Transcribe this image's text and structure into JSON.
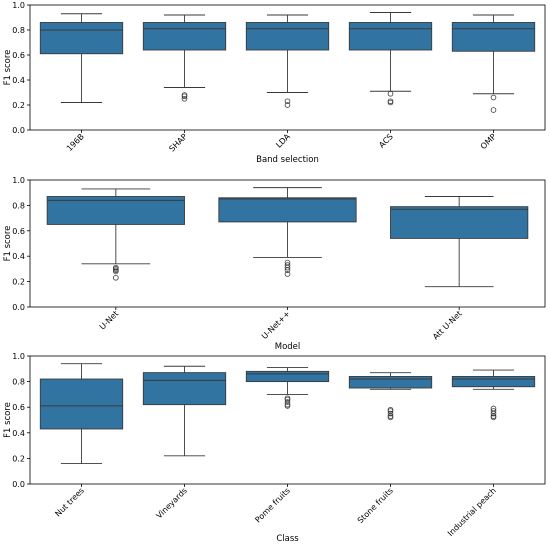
{
  "colors": {
    "box_fill": "#3274a1",
    "line": "#3a3a3a",
    "frame": "#000000",
    "background": "#ffffff"
  },
  "chart_data": [
    {
      "type": "box",
      "xlabel": "Band selection",
      "ylabel": "F1 score",
      "ylim": [
        0.0,
        1.0
      ],
      "yticks": [
        "0.0",
        "0.2",
        "0.4",
        "0.6",
        "0.8",
        "1.0"
      ],
      "grid": false,
      "categories": [
        "196B",
        "SHAP",
        "LDA",
        "ACS",
        "OMP"
      ],
      "boxes": [
        {
          "whisker_low": 0.22,
          "q1": 0.61,
          "median": 0.8,
          "q3": 0.86,
          "whisker_high": 0.93,
          "outliers": []
        },
        {
          "whisker_low": 0.34,
          "q1": 0.64,
          "median": 0.81,
          "q3": 0.86,
          "whisker_high": 0.92,
          "outliers": [
            0.28,
            0.27,
            0.25
          ]
        },
        {
          "whisker_low": 0.3,
          "q1": 0.64,
          "median": 0.81,
          "q3": 0.86,
          "whisker_high": 0.92,
          "outliers": [
            0.23,
            0.2
          ]
        },
        {
          "whisker_low": 0.31,
          "q1": 0.64,
          "median": 0.81,
          "q3": 0.86,
          "whisker_high": 0.94,
          "outliers": [
            0.29,
            0.23,
            0.22
          ]
        },
        {
          "whisker_low": 0.29,
          "q1": 0.63,
          "median": 0.81,
          "q3": 0.86,
          "whisker_high": 0.92,
          "outliers": [
            0.26,
            0.16
          ]
        }
      ]
    },
    {
      "type": "box",
      "xlabel": "Model",
      "ylabel": "F1 score",
      "ylim": [
        0.0,
        1.0
      ],
      "yticks": [
        "0.0",
        "0.2",
        "0.4",
        "0.6",
        "0.8",
        "1.0"
      ],
      "grid": false,
      "categories": [
        "U-Net",
        "U-Net++",
        "Att U-Net"
      ],
      "boxes": [
        {
          "whisker_low": 0.34,
          "q1": 0.65,
          "median": 0.84,
          "q3": 0.87,
          "whisker_high": 0.93,
          "outliers": [
            0.31,
            0.3,
            0.29,
            0.28,
            0.23
          ]
        },
        {
          "whisker_low": 0.39,
          "q1": 0.67,
          "median": 0.85,
          "q3": 0.86,
          "whisker_high": 0.94,
          "outliers": [
            0.35,
            0.33,
            0.31,
            0.29,
            0.26
          ]
        },
        {
          "whisker_low": 0.16,
          "q1": 0.54,
          "median": 0.77,
          "q3": 0.79,
          "whisker_high": 0.87,
          "outliers": []
        }
      ]
    },
    {
      "type": "box",
      "xlabel": "Class",
      "ylabel": "F1 score",
      "ylim": [
        0.0,
        1.0
      ],
      "yticks": [
        "0.0",
        "0.2",
        "0.4",
        "0.6",
        "0.8",
        "1.0"
      ],
      "grid": false,
      "categories": [
        "Nut trees",
        "Vineyards",
        "Pome fruits",
        "Stone fruits",
        "Industrial peach"
      ],
      "boxes": [
        {
          "whisker_low": 0.16,
          "q1": 0.43,
          "median": 0.61,
          "q3": 0.82,
          "whisker_high": 0.94,
          "outliers": []
        },
        {
          "whisker_low": 0.22,
          "q1": 0.62,
          "median": 0.81,
          "q3": 0.87,
          "whisker_high": 0.92,
          "outliers": []
        },
        {
          "whisker_low": 0.7,
          "q1": 0.8,
          "median": 0.86,
          "q3": 0.88,
          "whisker_high": 0.91,
          "outliers": [
            0.67,
            0.66,
            0.64,
            0.62,
            0.61
          ]
        },
        {
          "whisker_low": 0.74,
          "q1": 0.75,
          "median": 0.82,
          "q3": 0.84,
          "whisker_high": 0.87,
          "outliers": [
            0.58,
            0.57,
            0.55,
            0.53,
            0.52
          ]
        },
        {
          "whisker_low": 0.74,
          "q1": 0.76,
          "median": 0.82,
          "q3": 0.84,
          "whisker_high": 0.89,
          "outliers": [
            0.59,
            0.57,
            0.55,
            0.53,
            0.52
          ]
        }
      ]
    }
  ]
}
